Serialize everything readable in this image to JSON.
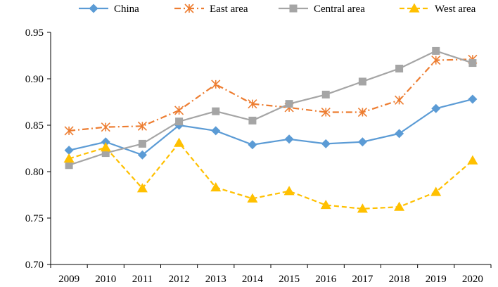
{
  "chart_data": {
    "type": "line",
    "title": "",
    "xlabel": "",
    "ylabel": "",
    "x": [
      "2009",
      "2010",
      "2011",
      "2012",
      "2013",
      "2014",
      "2015",
      "2016",
      "2017",
      "2018",
      "2019",
      "2020"
    ],
    "ylim": [
      0.7,
      0.95
    ],
    "yticks": [
      "0.70",
      "0.75",
      "0.80",
      "0.85",
      "0.90",
      "0.95"
    ],
    "grid": false,
    "legend_position": "top",
    "series": [
      {
        "name": "China",
        "color": "#5B9BD5",
        "marker": "diamond",
        "line": "solid",
        "values": [
          0.823,
          0.832,
          0.818,
          0.85,
          0.844,
          0.829,
          0.835,
          0.83,
          0.832,
          0.841,
          0.868,
          0.878
        ]
      },
      {
        "name": "East area",
        "color": "#ED7D31",
        "marker": "asterisk",
        "line": "dashdot",
        "values": [
          0.844,
          0.848,
          0.849,
          0.866,
          0.894,
          0.873,
          0.869,
          0.864,
          0.864,
          0.877,
          0.92,
          0.921
        ]
      },
      {
        "name": "Central area",
        "color": "#A5A5A5",
        "marker": "square",
        "line": "solid",
        "values": [
          0.807,
          0.82,
          0.83,
          0.854,
          0.865,
          0.855,
          0.873,
          0.883,
          0.897,
          0.911,
          0.93,
          0.917
        ]
      },
      {
        "name": "West area",
        "color": "#FFC000",
        "marker": "triangle",
        "line": "dashed",
        "values": [
          0.814,
          0.826,
          0.782,
          0.831,
          0.783,
          0.771,
          0.779,
          0.764,
          0.76,
          0.762,
          0.778,
          0.812
        ]
      }
    ]
  }
}
